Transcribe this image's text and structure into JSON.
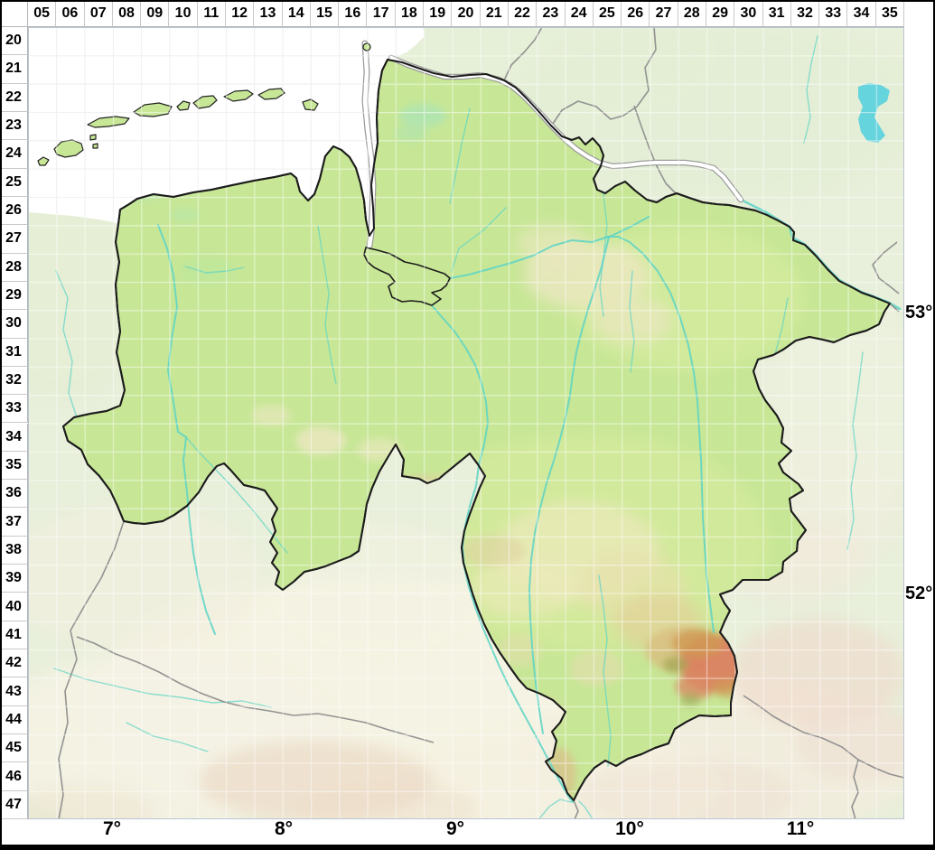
{
  "map_grid": {
    "column_labels": [
      "05",
      "06",
      "07",
      "08",
      "09",
      "10",
      "11",
      "12",
      "13",
      "14",
      "15",
      "16",
      "17",
      "18",
      "19",
      "20",
      "21",
      "22",
      "23",
      "24",
      "25",
      "26",
      "27",
      "28",
      "29",
      "30",
      "31",
      "32",
      "33",
      "34",
      "35"
    ],
    "row_labels": [
      "20",
      "21",
      "22",
      "23",
      "24",
      "25",
      "26",
      "27",
      "28",
      "29",
      "30",
      "31",
      "32",
      "33",
      "34",
      "35",
      "36",
      "37",
      "38",
      "39",
      "40",
      "41",
      "42",
      "43",
      "44",
      "45",
      "46",
      "47"
    ],
    "longitude_labels": [
      "7°",
      "8°",
      "9°",
      "10°",
      "11°"
    ],
    "latitude_labels": [
      "53°",
      "52°"
    ]
  },
  "colors": {
    "sea": "#ffffff",
    "state_fill": "#c7e796",
    "neighbor_fill": "#e8efda",
    "south_lowland": "#f5f2e3",
    "heath_beige": "#ece7c2",
    "hills_tan": "#dccE9c",
    "harz_red": "#dc7c5e",
    "harz_orange": "#d09a52",
    "moor_teal": "#aae4b8",
    "river": "#5cd4c6",
    "lake": "#58d0de",
    "channel_water": "#ffffff",
    "channel_bank": "#9b9b9b",
    "state_border": "#1c1c1c",
    "foreign_border": "#8d8d8d",
    "grid_on_sea": "#e2e2e2",
    "grid_on_land": "#ffffff",
    "label_text": "#000000",
    "frame": "#000000",
    "map_edge": "#b9c5d0"
  }
}
